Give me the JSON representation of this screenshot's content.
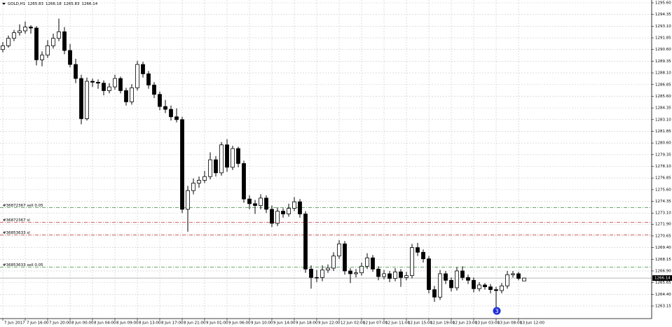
{
  "chart_data": {
    "type": "candlestick",
    "symbol": "GOLD,H1",
    "annotation": "3",
    "up_color": "#ffffff",
    "down_color": "#000000",
    "grid": true,
    "ylim": [
      1261.8,
      1295.9
    ],
    "yticks": [
      {
        "value": 1295.6,
        "label": "1295.60"
      },
      1294.35,
      {
        "value": 1293.1,
        "label": "1293.10"
      },
      1291.85,
      {
        "value": 1290.6,
        "label": "1290.60"
      },
      1289.35,
      {
        "value": 1288.1,
        "label": "1288.10"
      },
      1286.85,
      {
        "value": 1285.6,
        "label": "1285.60"
      },
      1284.35,
      {
        "value": 1283.1,
        "label": "1283.10"
      },
      1281.85,
      {
        "value": 1280.6,
        "label": "1280.60"
      },
      1279.35,
      {
        "value": 1278.1,
        "label": "1278.10"
      },
      1276.85,
      {
        "value": 1275.6,
        "label": "1275.60"
      },
      1274.35,
      {
        "value": 1273.1,
        "label": "1273.10"
      },
      {
        "value": 1271.9,
        "label": "1271.90"
      },
      1270.65,
      {
        "value": 1269.4,
        "label": "1269.40"
      },
      1268.15,
      {
        "value": 1266.9,
        "label": "1266.90"
      },
      1265.65,
      {
        "value": 1264.4,
        "label": "1264.40"
      },
      1263.15
    ],
    "orders": [
      {
        "label": "#36872367 sell 0.05",
        "value": 1273.67,
        "color": "#3a8a3a"
      },
      {
        "label": "#36872367 sl",
        "value": 1272.1,
        "color": "#d05050"
      },
      {
        "label": "#36853633 sl",
        "value": 1270.75,
        "color": "#d05050"
      },
      {
        "label": "#36853633 sell 0.05",
        "value": 1267.3,
        "color": "#3a8a3a"
      }
    ],
    "categories": [
      "7 Jun 2017",
      null,
      null,
      null,
      "7 Jun 16:00",
      null,
      null,
      null,
      "7 Jun 20:00",
      null,
      null,
      null,
      "8 Jun 00:00",
      null,
      null,
      null,
      "8 Jun 04:00",
      null,
      null,
      null,
      "8 Jun 09:00",
      null,
      null,
      null,
      "8 Jun 13:00",
      null,
      null,
      null,
      "8 Jun 17:00",
      null,
      null,
      null,
      "8 Jun 21:00",
      null,
      null,
      null,
      "9 Jun 01:00",
      null,
      null,
      null,
      "9 Jun 06:00",
      null,
      null,
      null,
      "9 Jun 10:00",
      null,
      null,
      null,
      "9 Jun 14:00",
      null,
      null,
      null,
      "9 Jun 18:00",
      null,
      null,
      null,
      "9 Jun 22:00",
      null,
      null,
      null,
      "12 Jun 02:00",
      null,
      null,
      null,
      "12 Jun 07:00",
      null,
      null,
      null,
      "12 Jun 11:00",
      null,
      null,
      null,
      "12 Jun 15:00",
      null,
      null,
      null,
      "12 Jun 19:00",
      null,
      null,
      null,
      "12 Jun 23:00",
      null,
      null,
      null,
      "13 Jun 03:00",
      null,
      null,
      null,
      "13 Jun 08:00",
      null,
      null,
      null,
      "13 Jun 12:00",
      null
    ],
    "candles": [
      [
        1290.6,
        1291.4,
        1290.3,
        1291.0
      ],
      [
        1291.0,
        1292.1,
        1290.8,
        1291.8
      ],
      [
        1291.8,
        1292.7,
        1291.5,
        1292.4
      ],
      [
        1292.4,
        1293.3,
        1292.1,
        1292.6
      ],
      [
        1292.6,
        1293.6,
        1292.3,
        1293.0
      ],
      [
        1293.0,
        1293.2,
        1292.3,
        1292.9
      ],
      [
        1292.9,
        1293.1,
        1288.9,
        1289.5
      ],
      [
        1289.5,
        1290.4,
        1288.8,
        1290.0
      ],
      [
        1290.0,
        1291.6,
        1289.7,
        1291.0
      ],
      [
        1291.0,
        1292.3,
        1290.7,
        1291.8
      ],
      [
        1291.8,
        1293.9,
        1291.5,
        1292.5
      ],
      [
        1292.5,
        1293.0,
        1290.1,
        1290.5
      ],
      [
        1290.5,
        1291.2,
        1288.7,
        1289.0
      ],
      [
        1289.0,
        1289.6,
        1287.0,
        1287.5
      ],
      [
        1287.5,
        1287.9,
        1282.6,
        1283.2
      ],
      [
        1283.2,
        1287.6,
        1283.0,
        1287.2
      ],
      [
        1287.2,
        1287.5,
        1286.6,
        1287.1
      ],
      [
        1287.1,
        1287.4,
        1286.4,
        1287.0
      ],
      [
        1287.0,
        1287.3,
        1285.7,
        1286.2
      ],
      [
        1286.2,
        1287.0,
        1285.9,
        1286.6
      ],
      [
        1286.6,
        1287.9,
        1286.3,
        1287.5
      ],
      [
        1287.5,
        1287.7,
        1285.9,
        1286.2
      ],
      [
        1286.2,
        1286.5,
        1284.6,
        1285.0
      ],
      [
        1285.0,
        1286.9,
        1284.7,
        1286.5
      ],
      [
        1286.5,
        1289.4,
        1286.2,
        1289.0
      ],
      [
        1289.0,
        1289.3,
        1287.6,
        1288.0
      ],
      [
        1288.0,
        1288.3,
        1286.4,
        1286.8
      ],
      [
        1286.8,
        1287.1,
        1285.4,
        1285.8
      ],
      [
        1285.8,
        1286.1,
        1284.1,
        1284.5
      ],
      [
        1284.5,
        1285.2,
        1283.8,
        1284.2
      ],
      [
        1284.2,
        1284.6,
        1283.0,
        1283.4
      ],
      [
        1283.4,
        1284.3,
        1282.8,
        1283.1
      ],
      [
        1283.1,
        1283.4,
        1273.1,
        1273.5
      ],
      [
        1273.5,
        1276.0,
        1271.1,
        1275.5
      ],
      [
        1275.5,
        1276.8,
        1275.1,
        1276.3
      ],
      [
        1276.3,
        1277.0,
        1275.8,
        1276.6
      ],
      [
        1276.6,
        1277.6,
        1276.3,
        1277.0
      ],
      [
        1277.0,
        1279.6,
        1276.7,
        1278.8
      ],
      [
        1278.8,
        1279.2,
        1277.0,
        1277.4
      ],
      [
        1277.4,
        1280.7,
        1277.1,
        1280.4
      ],
      [
        1280.4,
        1281.0,
        1277.5,
        1278.0
      ],
      [
        1278.0,
        1280.3,
        1277.7,
        1280.0
      ],
      [
        1280.0,
        1280.2,
        1278.0,
        1278.4
      ],
      [
        1278.4,
        1278.7,
        1274.2,
        1274.6
      ],
      [
        1274.6,
        1275.0,
        1273.5,
        1274.1
      ],
      [
        1274.1,
        1274.5,
        1273.0,
        1273.9
      ],
      [
        1273.9,
        1275.1,
        1273.5,
        1274.7
      ],
      [
        1274.7,
        1275.0,
        1273.1,
        1273.5
      ],
      [
        1273.5,
        1273.9,
        1271.6,
        1272.0
      ],
      [
        1272.0,
        1273.7,
        1271.7,
        1273.3
      ],
      [
        1273.3,
        1273.6,
        1272.6,
        1273.0
      ],
      [
        1273.0,
        1274.1,
        1272.7,
        1273.6
      ],
      [
        1273.6,
        1274.8,
        1273.3,
        1274.3
      ],
      [
        1274.3,
        1274.6,
        1272.6,
        1273.0
      ],
      [
        1273.0,
        1273.3,
        1266.7,
        1267.1
      ],
      [
        1267.1,
        1267.5,
        1265.0,
        1266.2
      ],
      [
        1266.2,
        1267.0,
        1265.7,
        1266.2
      ],
      [
        1266.2,
        1267.5,
        1265.8,
        1267.0
      ],
      [
        1267.0,
        1267.6,
        1266.7,
        1267.2
      ],
      [
        1267.2,
        1268.9,
        1266.9,
        1268.5
      ],
      [
        1268.5,
        1270.2,
        1268.2,
        1269.8
      ],
      [
        1269.8,
        1270.1,
        1266.5,
        1266.9
      ],
      [
        1266.9,
        1267.2,
        1265.6,
        1266.6
      ],
      [
        1266.6,
        1267.1,
        1266.2,
        1266.7
      ],
      [
        1266.7,
        1267.8,
        1266.4,
        1267.4
      ],
      [
        1267.4,
        1268.8,
        1267.1,
        1268.3
      ],
      [
        1268.3,
        1268.6,
        1266.8,
        1267.1
      ],
      [
        1267.1,
        1267.4,
        1265.9,
        1266.3
      ],
      [
        1266.3,
        1267.0,
        1266.0,
        1266.6
      ],
      [
        1266.6,
        1266.9,
        1265.7,
        1266.1
      ],
      [
        1266.1,
        1267.2,
        1265.8,
        1266.8
      ],
      [
        1266.8,
        1267.1,
        1265.2,
        1266.2
      ],
      [
        1266.2,
        1266.8,
        1265.9,
        1266.4
      ],
      [
        1266.4,
        1269.8,
        1266.1,
        1269.4
      ],
      [
        1269.4,
        1269.9,
        1268.5,
        1268.9
      ],
      [
        1268.9,
        1269.2,
        1267.8,
        1268.2
      ],
      [
        1268.2,
        1268.5,
        1264.5,
        1264.9
      ],
      [
        1264.9,
        1265.3,
        1263.6,
        1264.1
      ],
      [
        1264.1,
        1267.0,
        1263.8,
        1266.6
      ],
      [
        1266.6,
        1266.9,
        1265.5,
        1265.9
      ],
      [
        1265.9,
        1266.2,
        1264.7,
        1265.1
      ],
      [
        1265.1,
        1267.3,
        1264.8,
        1266.9
      ],
      [
        1266.9,
        1267.4,
        1265.9,
        1266.2
      ],
      [
        1266.2,
        1266.5,
        1265.5,
        1265.9
      ],
      [
        1265.9,
        1266.2,
        1264.6,
        1265.0
      ],
      [
        1265.0,
        1265.7,
        1264.7,
        1265.4
      ],
      [
        1265.4,
        1265.6,
        1264.9,
        1265.2
      ],
      [
        1265.2,
        1265.5,
        1264.5,
        1264.9
      ],
      [
        1264.9,
        1265.2,
        1262.9,
        1264.8
      ],
      [
        1264.8,
        1265.6,
        1264.5,
        1265.3
      ],
      [
        1265.3,
        1266.9,
        1265.0,
        1266.5
      ],
      [
        1266.5,
        1266.9,
        1266.2,
        1266.6
      ],
      [
        1266.6,
        1266.8,
        1265.9,
        1266.1
      ],
      [
        1265.83,
        1266.18,
        1265.83,
        1266.14
      ]
    ]
  }
}
